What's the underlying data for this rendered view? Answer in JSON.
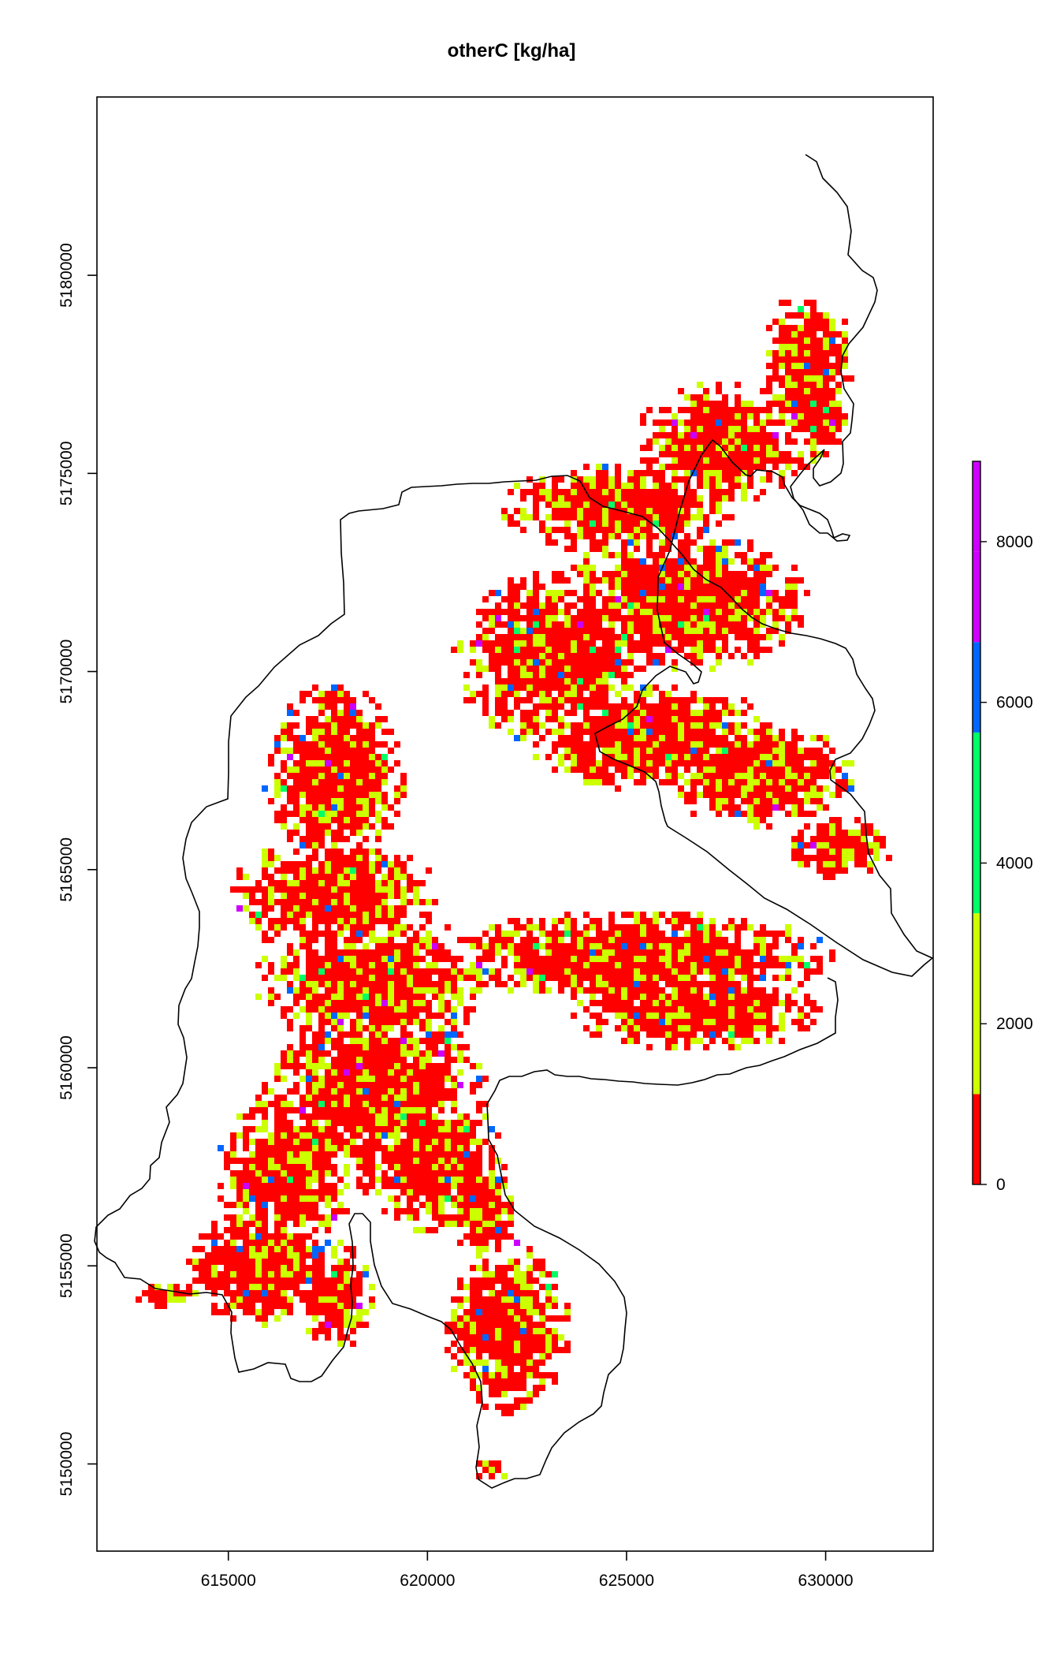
{
  "title": "otherC [kg/ha]",
  "map": {
    "x_range": [
      611700,
      632700
    ],
    "y_range": [
      5147800,
      5184500
    ],
    "x_ticks": [
      615000,
      620000,
      625000,
      630000
    ],
    "x_tick_labels": [
      "615000",
      "620000",
      "625000",
      "630000"
    ],
    "y_ticks": [
      5150000,
      5155000,
      5160000,
      5165000,
      5170000,
      5175000,
      5180000
    ],
    "y_tick_labels": [
      "5150000",
      "5155000",
      "5160000",
      "5165000",
      "5170000",
      "5175000",
      "5180000"
    ]
  },
  "legend": {
    "range": [
      0,
      9000
    ],
    "breaks": [
      0,
      1125,
      3375,
      5625,
      6750,
      7875,
      9000
    ],
    "colors": [
      "#ff0000",
      "#ccff00",
      "#00ff66",
      "#0066ff",
      "#cc00ff",
      "#cc00ff"
    ],
    "ticks": [
      0,
      2000,
      4000,
      6000,
      8000
    ],
    "tick_labels": [
      "0",
      "2000",
      "4000",
      "6000",
      "8000"
    ]
  }
}
